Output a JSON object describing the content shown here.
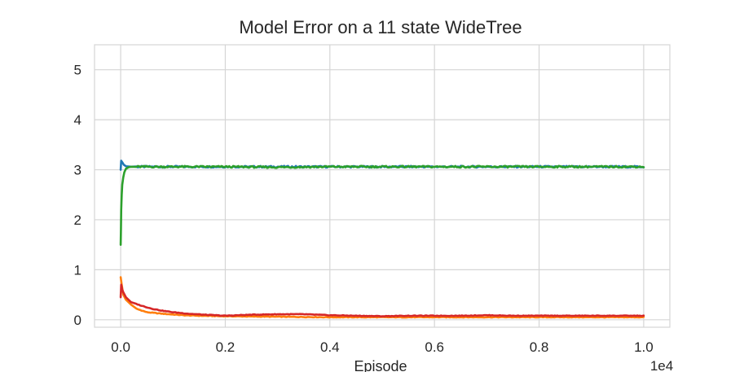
{
  "chart_data": {
    "type": "line",
    "title": "Model Error on a 11 state WideTree",
    "xlabel": "Episode",
    "ylabel": "",
    "x_scale_label": "1e4",
    "xlim": [
      -0.05,
      1.05
    ],
    "ylim": [
      -0.15,
      5.5
    ],
    "xticks": [
      0.0,
      0.2,
      0.4,
      0.6,
      0.8,
      1.0
    ],
    "xtick_labels": [
      "0.0",
      "0.2",
      "0.4",
      "0.6",
      "0.8",
      "1.0"
    ],
    "yticks": [
      0,
      1,
      2,
      3,
      4,
      5
    ],
    "ytick_labels": [
      "0",
      "1",
      "2",
      "3",
      "4",
      "5"
    ],
    "grid": true,
    "legend": "none",
    "series": [
      {
        "color": "#1f77b4",
        "points": [
          [
            0.0,
            3.0
          ],
          [
            0.001,
            3.18
          ],
          [
            0.003,
            3.15
          ],
          [
            0.006,
            3.1
          ],
          [
            0.01,
            3.07
          ],
          [
            0.02,
            3.06
          ],
          [
            0.05,
            3.06
          ],
          [
            0.2,
            3.06
          ],
          [
            0.4,
            3.06
          ],
          [
            0.6,
            3.06
          ],
          [
            0.8,
            3.06
          ],
          [
            1.0,
            3.06
          ]
        ]
      },
      {
        "color": "#ff7f0e",
        "points": [
          [
            0.0,
            0.85
          ],
          [
            0.002,
            0.7
          ],
          [
            0.005,
            0.5
          ],
          [
            0.01,
            0.4
          ],
          [
            0.02,
            0.3
          ],
          [
            0.03,
            0.22
          ],
          [
            0.05,
            0.15
          ],
          [
            0.08,
            0.12
          ],
          [
            0.12,
            0.09
          ],
          [
            0.15,
            0.08
          ],
          [
            0.2,
            0.07
          ],
          [
            0.3,
            0.06
          ],
          [
            0.4,
            0.05
          ],
          [
            0.5,
            0.05
          ],
          [
            0.6,
            0.05
          ],
          [
            0.7,
            0.05
          ],
          [
            0.8,
            0.05
          ],
          [
            0.9,
            0.05
          ],
          [
            1.0,
            0.05
          ]
        ]
      },
      {
        "color": "#2ca02c",
        "points": [
          [
            0.0,
            1.5
          ],
          [
            0.0005,
            1.8
          ],
          [
            0.001,
            2.2
          ],
          [
            0.002,
            2.5
          ],
          [
            0.003,
            2.7
          ],
          [
            0.005,
            2.85
          ],
          [
            0.007,
            2.95
          ],
          [
            0.01,
            3.02
          ],
          [
            0.015,
            3.05
          ],
          [
            0.02,
            3.06
          ],
          [
            0.1,
            3.06
          ],
          [
            0.2,
            3.06
          ],
          [
            0.3,
            3.05
          ],
          [
            0.4,
            3.06
          ],
          [
            0.5,
            3.06
          ],
          [
            0.6,
            3.06
          ],
          [
            0.7,
            3.06
          ],
          [
            0.8,
            3.06
          ],
          [
            0.9,
            3.06
          ],
          [
            1.0,
            3.06
          ]
        ]
      },
      {
        "color": "#d62728",
        "points": [
          [
            0.0,
            0.45
          ],
          [
            0.001,
            0.7
          ],
          [
            0.003,
            0.6
          ],
          [
            0.005,
            0.55
          ],
          [
            0.01,
            0.45
          ],
          [
            0.02,
            0.35
          ],
          [
            0.04,
            0.28
          ],
          [
            0.06,
            0.22
          ],
          [
            0.08,
            0.18
          ],
          [
            0.1,
            0.15
          ],
          [
            0.13,
            0.12
          ],
          [
            0.16,
            0.1
          ],
          [
            0.2,
            0.08
          ],
          [
            0.25,
            0.1
          ],
          [
            0.3,
            0.11
          ],
          [
            0.35,
            0.11
          ],
          [
            0.4,
            0.09
          ],
          [
            0.45,
            0.08
          ],
          [
            0.5,
            0.07
          ],
          [
            0.55,
            0.08
          ],
          [
            0.6,
            0.08
          ],
          [
            0.65,
            0.08
          ],
          [
            0.7,
            0.09
          ],
          [
            0.75,
            0.08
          ],
          [
            0.8,
            0.08
          ],
          [
            0.85,
            0.08
          ],
          [
            0.9,
            0.08
          ],
          [
            0.95,
            0.08
          ],
          [
            1.0,
            0.08
          ]
        ]
      }
    ]
  }
}
